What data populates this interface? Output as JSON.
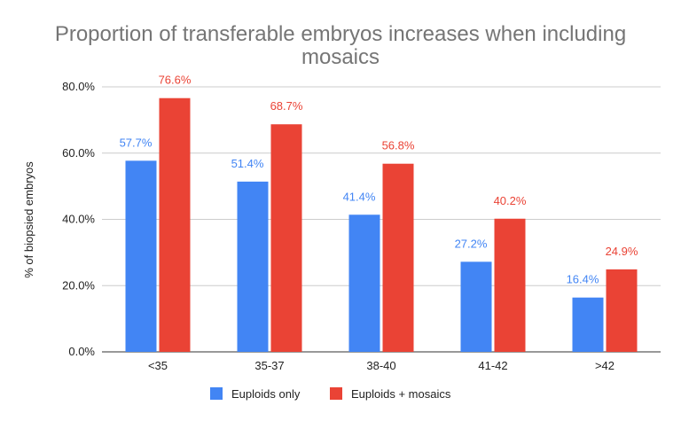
{
  "chart_data": {
    "type": "bar",
    "title": "Proportion of transferable embryos increases when including mosaics",
    "ylabel": "% of biopsied embryos",
    "xlabel": "",
    "categories": [
      "<35",
      "35-37",
      "38-40",
      "41-42",
      ">42"
    ],
    "series": [
      {
        "name": "Euploids only",
        "color": "#4285f4",
        "values": [
          57.7,
          51.4,
          41.4,
          27.2,
          16.4
        ],
        "labels": [
          "57.7%",
          "51.4%",
          "41.4%",
          "27.2%",
          "16.4%"
        ]
      },
      {
        "name": "Euploids + mosaics",
        "color": "#ea4335",
        "values": [
          76.6,
          68.7,
          56.8,
          40.2,
          24.9
        ],
        "labels": [
          "76.6%",
          "68.7%",
          "56.8%",
          "40.2%",
          "24.9%"
        ]
      }
    ],
    "ylim": [
      0,
      80
    ],
    "yticks": [
      0,
      20,
      40,
      60,
      80
    ],
    "ytick_labels": [
      "0.0%",
      "20.0%",
      "40.0%",
      "60.0%",
      "80.0%"
    ],
    "grid": true,
    "legend_position": "bottom"
  }
}
